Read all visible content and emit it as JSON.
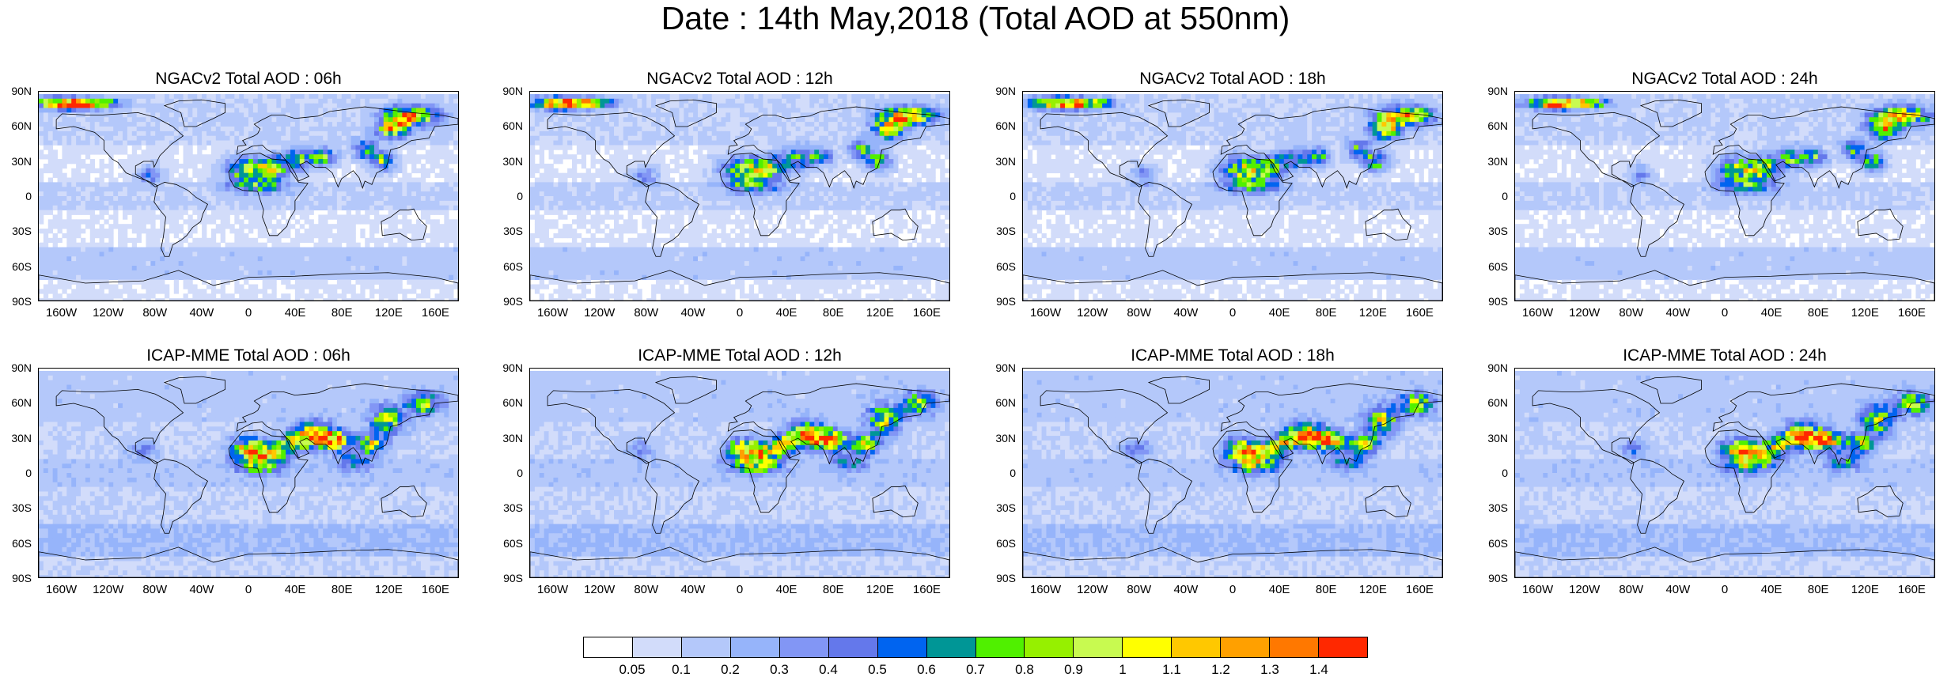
{
  "title": "Date : 14th May,2018 (Total AOD at 550nm)",
  "panels": [
    {
      "title": "NGACv2 Total AOD : 06h",
      "model": "ngac",
      "hour": 6
    },
    {
      "title": "NGACv2 Total AOD : 12h",
      "model": "ngac",
      "hour": 12
    },
    {
      "title": "NGACv2 Total AOD : 18h",
      "model": "ngac",
      "hour": 18
    },
    {
      "title": "NGACv2 Total AOD : 24h",
      "model": "ngac",
      "hour": 24
    },
    {
      "title": "ICAP-MME Total AOD : 06h",
      "model": "icap",
      "hour": 6
    },
    {
      "title": "ICAP-MME Total AOD : 12h",
      "model": "icap",
      "hour": 12
    },
    {
      "title": "ICAP-MME Total AOD : 18h",
      "model": "icap",
      "hour": 18
    },
    {
      "title": "ICAP-MME Total AOD : 24h",
      "model": "icap",
      "hour": 24
    }
  ],
  "lat_labels": [
    "90N",
    "60N",
    "30N",
    "0",
    "30S",
    "60S",
    "90S"
  ],
  "lon_labels": [
    "160W",
    "120W",
    "80W",
    "40W",
    "0",
    "40E",
    "80E",
    "120E",
    "160E"
  ],
  "lon_values": [
    -160,
    -120,
    -80,
    -40,
    0,
    40,
    80,
    120,
    160
  ],
  "lat_values": [
    90,
    60,
    30,
    0,
    -30,
    -60,
    -90
  ],
  "colorbar": {
    "labels": [
      "0.05",
      "0.1",
      "0.2",
      "0.3",
      "0.4",
      "0.5",
      "0.6",
      "0.7",
      "0.8",
      "0.9",
      "1",
      "1.1",
      "1.2",
      "1.3",
      "1.4"
    ],
    "colors": [
      "#ffffff",
      "#d2dcfa",
      "#b4c8fa",
      "#96b4fa",
      "#8296f5",
      "#6478eb",
      "#0064f0",
      "#009696",
      "#50f000",
      "#96f000",
      "#c8fa50",
      "#ffff00",
      "#ffc800",
      "#ffa000",
      "#ff7800",
      "#ff2800"
    ]
  }
}
